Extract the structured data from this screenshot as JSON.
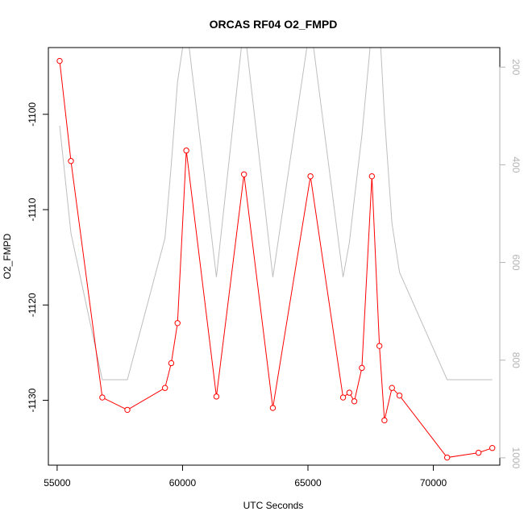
{
  "chart_data": {
    "type": "line",
    "title": "ORCAS RF04 O2_FMPD",
    "xlabel": "UTC Seconds",
    "ylabel": "O2_FMPD",
    "xlim": [
      54650,
      72650
    ],
    "ylim": [
      -1136.8,
      -1093.0
    ],
    "y2lim": [
      1015,
      160
    ],
    "x_ticks": [
      55000,
      60000,
      65000,
      70000
    ],
    "y_ticks": [
      -1130,
      -1120,
      -1110,
      -1100
    ],
    "y2_ticks": [
      200,
      400,
      600,
      800,
      1000
    ],
    "x_tick_labels": [
      "55000",
      "60000",
      "65000",
      "70000"
    ],
    "y_tick_labels": [
      "-1130",
      "-1120",
      "-1110",
      "-1100"
    ],
    "y2_tick_labels": [
      "200",
      "400",
      "600",
      "800",
      "1000"
    ],
    "colors": {
      "primary": "#ff0000",
      "secondary": "#bebebe",
      "axis": "#000000",
      "secondary_axis": "#b3b3b3"
    },
    "series": [
      {
        "axis": "left",
        "marker": "open-circle",
        "x": [
          55100,
          55550,
          56800,
          57800,
          59300,
          59550,
          59800,
          60150,
          61350,
          62450,
          63600,
          65100,
          66400,
          66650,
          66850,
          67150,
          67550,
          67850,
          68050,
          68350,
          68650,
          70550,
          71800,
          72350
        ],
        "y": [
          -1094.4,
          -1104.9,
          -1129.7,
          -1131.0,
          -1128.7,
          -1126.1,
          -1121.9,
          -1103.8,
          -1129.6,
          -1106.3,
          -1130.8,
          -1106.5,
          -1129.7,
          -1129.2,
          -1130.1,
          -1126.6,
          -1106.5,
          -1124.3,
          -1132.1,
          -1128.7,
          -1129.5,
          -1136.0,
          -1135.5,
          -1135.0
        ]
      },
      {
        "axis": "right",
        "x": [
          55100,
          55550,
          56800,
          57800,
          59300,
          59550,
          59800,
          60150,
          61350,
          62450,
          63600,
          65100,
          66400,
          66650,
          66850,
          67150,
          67550,
          67850,
          68050,
          68350,
          68650,
          70550,
          71800,
          72350
        ],
        "y": [
          320,
          540,
          840,
          840,
          550,
          400,
          230,
          110,
          630,
          110,
          630,
          110,
          630,
          560,
          470,
          340,
          120,
          110,
          300,
          520,
          620,
          840,
          840,
          840
        ]
      }
    ]
  }
}
